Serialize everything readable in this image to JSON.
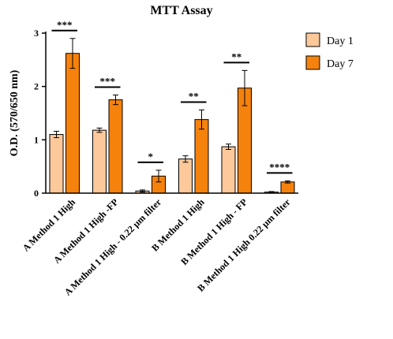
{
  "chart_data": {
    "type": "bar",
    "title": "MTT Assay",
    "ylabel": "O.D. (570/650 nm)",
    "xlabel": "",
    "ylim": [
      0,
      3
    ],
    "yticks": [
      "0",
      "1",
      "2",
      "3"
    ],
    "grid": false,
    "legend_position": "top-right",
    "categories": [
      "A Method 1 High",
      "A Method 1 High -FP",
      "A Method 1 High - 0.22 µm filter",
      "B Method 1 High",
      "B Method 1 High - FP",
      "B Method 1 High 0.22 µm filter"
    ],
    "series": [
      {
        "name": "Day 1",
        "color": "#FDC89A",
        "values": [
          1.1,
          1.18,
          0.04,
          0.64,
          0.87,
          0.02
        ],
        "errors": [
          0.06,
          0.04,
          0.02,
          0.06,
          0.05,
          0.01
        ]
      },
      {
        "name": "Day 7",
        "color": "#F5820D",
        "values": [
          2.62,
          1.75,
          0.32,
          1.38,
          1.97,
          0.21
        ],
        "errors": [
          0.28,
          0.09,
          0.11,
          0.18,
          0.33,
          0.02
        ]
      }
    ],
    "significance": [
      "***",
      "***",
      "*",
      "**",
      "**",
      "****"
    ]
  }
}
